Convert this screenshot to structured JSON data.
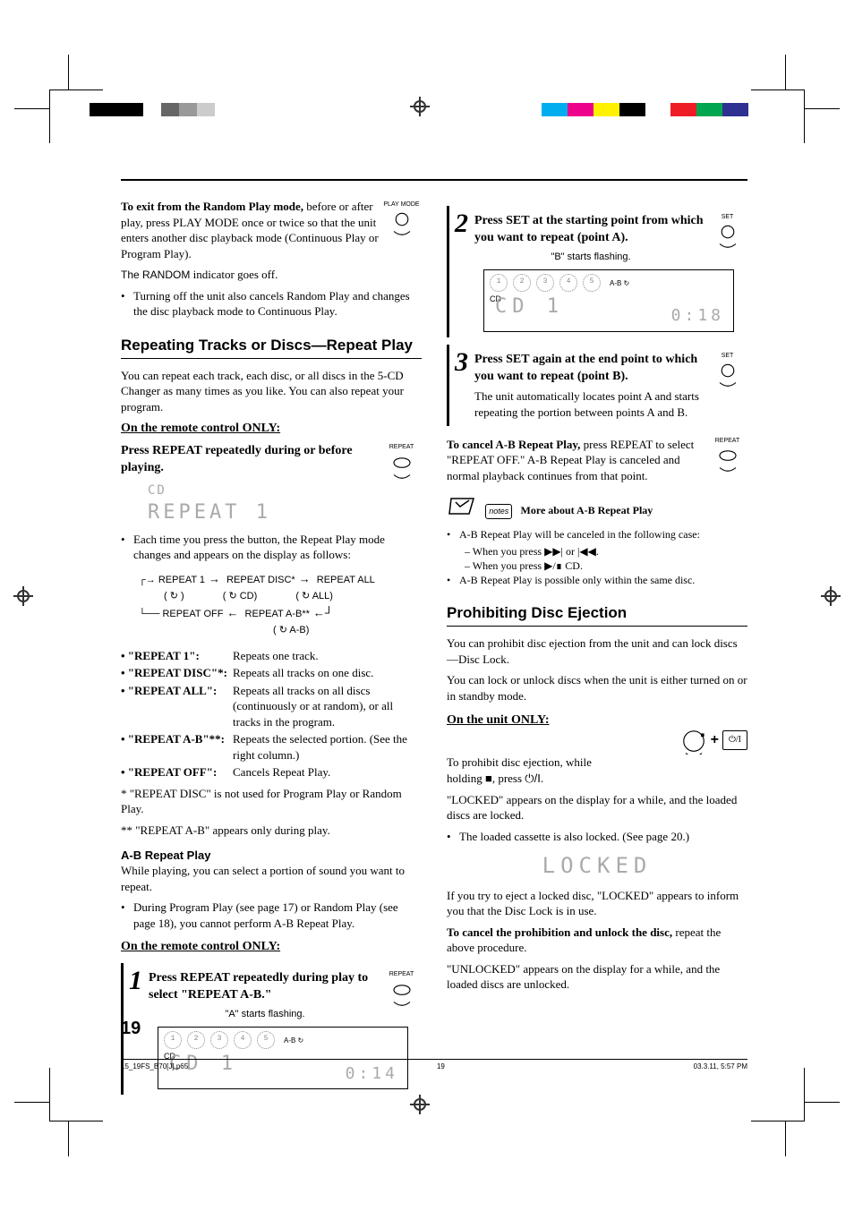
{
  "printMarks": {
    "leftBars": [
      "#000000",
      "#000000",
      "#000000",
      "#ffffff",
      "#666666",
      "#999999",
      "#cccccc",
      "#ffffff"
    ],
    "rightBars": [
      "#00adee",
      "#ec008c",
      "#fff100",
      "#000000",
      "#ffffff",
      "#ee1d25",
      "#00a650",
      "#2f3192",
      "#ffffff"
    ]
  },
  "left": {
    "exitRandom": {
      "lead": "To exit from the Random Play mode,",
      "rest": " before or after play, press PLAY MODE once or twice so that the unit enters another disc playback mode (Continuous Play or Program Play).",
      "randomOff": "The RANDOM indicator goes off.",
      "bullet": "Turning off the unit also cancels Random Play and changes the disc playback mode to Continuous Play.",
      "btnLabel": "PLAY MODE"
    },
    "repeatSection": {
      "title": "Repeating Tracks or Discs—Repeat Play",
      "intro": "You can repeat each track, each disc, or all discs in the 5-CD Changer as many times as you like. You can also repeat your program.",
      "remoteOnly": "On the remote control ONLY:",
      "pressRepeat": "Press REPEAT repeatedly during or before playing.",
      "btnLabel": "REPEAT",
      "displayLine1": "CD",
      "displayLine2": "REPEAT    1",
      "eachTime": "Each time you press the button, the Repeat Play mode changes and appears on the display as follows:",
      "cycle": {
        "r1": "REPEAT 1",
        "r1sym": "( ↻ )",
        "r2": "REPEAT DISC*",
        "r2sym": "( ↻ CD)",
        "r3": "REPEAT ALL",
        "r3sym": "( ↻ ALL)",
        "r4": "REPEAT OFF",
        "r5": "REPEAT A-B**",
        "r5sym": "( ↻ A-B)"
      },
      "defs": [
        {
          "term": "• \"REPEAT 1\":",
          "desc": "Repeats one track."
        },
        {
          "term": "• \"REPEAT DISC\"*:",
          "desc": "Repeats all tracks on one disc."
        },
        {
          "term": "• \"REPEAT ALL\":",
          "desc": "Repeats all tracks on all discs (continuously or at random), or all tracks in the program."
        },
        {
          "term": "• \"REPEAT A-B\"**:",
          "desc": "Repeats the selected portion. (See the right column.)"
        },
        {
          "term": "• \"REPEAT OFF\":",
          "desc": "Cancels Repeat Play."
        }
      ],
      "foot1": "*  \"REPEAT DISC\" is not used for Program Play or Random Play.",
      "foot2": "** \"REPEAT A-B\" appears only during play."
    },
    "abRepeat": {
      "title": "A-B Repeat Play",
      "p1": "While playing, you can select a portion of sound you want to repeat.",
      "bullet": "During Program Play (see page 17) or Random Play (see page 18), you cannot perform A-B Repeat Play.",
      "remoteOnly": "On the remote control ONLY:",
      "step1": {
        "num": "1",
        "lead": "Press REPEAT repeatedly during play to select \"REPEAT A-B.\"",
        "sub": "\"A\" starts flashing.",
        "cd": "CD        1",
        "time": "0:14",
        "btnLabel": "REPEAT"
      }
    }
  },
  "right": {
    "step2": {
      "num": "2",
      "lead": "Press SET at the starting point from which you want to repeat (point A).",
      "sub": "\"B\" starts flashing.",
      "cd": "CD        1",
      "time": "0:18",
      "btnLabel": "SET"
    },
    "step3": {
      "num": "3",
      "lead": "Press SET again at the end point to which you want to repeat (point B).",
      "sub": "The unit automatically locates point A and starts repeating the portion between points A and B.",
      "btnLabel": "SET"
    },
    "cancelAB": {
      "lead": "To cancel A-B Repeat Play,",
      "rest": " press REPEAT to select \"REPEAT OFF.\" A-B Repeat Play is canceled and normal playback continues from that point.",
      "btnLabel": "REPEAT"
    },
    "notes": {
      "title": "More about A-B Repeat Play",
      "b1": "A-B Repeat Play will be canceled in the following case:",
      "b1a": "– When you press ▶▶| or |◀◀.",
      "b1b": "– When you press ▶/∎ CD.",
      "b2": "A-B Repeat Play is possible only within the same disc."
    },
    "prohibit": {
      "title": "Prohibiting Disc Ejection",
      "p1": "You can prohibit disc ejection from the unit and can lock discs—Disc Lock.",
      "p2": "You can lock or unlock discs when the unit is either turned on or in standby mode.",
      "unitOnly": "On the unit ONLY:",
      "p3a": "To prohibit disc ejection, while holding ■, press ",
      "p3power": "⏻/I",
      "p3b": ".",
      "p4": "\"LOCKED\" appears on the display for a while, and the loaded discs are locked.",
      "b1": "The loaded cassette is also locked. (See page 20.)",
      "locked": "LOCKED",
      "p5": "If you try to eject a locked disc, \"LOCKED\" appears to inform you that the Disc Lock is in use.",
      "cancelLead": "To cancel the prohibition and unlock the disc,",
      "cancelRest": " repeat the above procedure.",
      "p6": "\"UNLOCKED\" appears on the display for a while, and the loaded discs are unlocked."
    }
  },
  "pageNumber": "19",
  "footer": {
    "file": "15_19FS_B70[J].p65",
    "pg": "19",
    "date": "03.3.11, 5:57 PM"
  }
}
